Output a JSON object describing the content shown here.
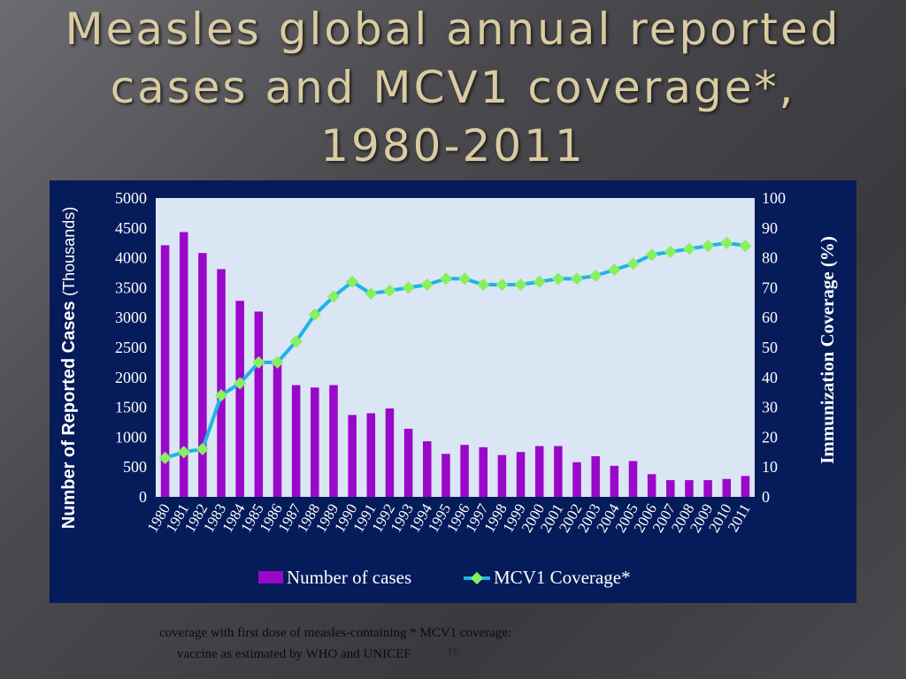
{
  "slide": {
    "title_lines": [
      "Measles global annual reported",
      "cases and MCV1 coverage*,",
      "1980-2011"
    ],
    "footnote_line1": "coverage with first dose of  measles-containing   * MCV1 coverage:",
    "footnote_line2": "vaccine as estimated by WHO and UNICEF",
    "page_number": "16"
  },
  "colors": {
    "panel_bg": "#051b5a",
    "plot_bg": "#dae6f3",
    "bars": "#9a08c9",
    "line": "#1fb3e8",
    "markers": "#88f060",
    "text": "#ffffff"
  },
  "chart_data": {
    "type": "bar",
    "categories": [
      "1980",
      "1981",
      "1982",
      "1983",
      "1984",
      "1985",
      "1986",
      "1987",
      "1988",
      "1989",
      "1990",
      "1991",
      "1992",
      "1993",
      "1994",
      "1995",
      "1996",
      "1997",
      "1998",
      "1999",
      "2000",
      "2001",
      "2002",
      "2003",
      "2004",
      "2005",
      "2006",
      "2007",
      "2008",
      "2009",
      "2010",
      "2011"
    ],
    "series": [
      {
        "name": "Number of  cases",
        "chart_type": "bar",
        "axis": "left",
        "values": [
          4210,
          4430,
          4080,
          3810,
          3280,
          3100,
          2300,
          1870,
          1830,
          1870,
          1370,
          1400,
          1480,
          1140,
          930,
          720,
          870,
          830,
          700,
          750,
          850,
          850,
          580,
          680,
          520,
          600,
          380,
          280,
          280,
          280,
          300,
          350
        ]
      },
      {
        "name": "MCV1 Coverage*",
        "chart_type": "line",
        "axis": "right",
        "values": [
          13,
          15,
          16,
          34,
          38,
          45,
          45,
          52,
          61,
          67,
          72,
          68,
          69,
          70,
          71,
          73,
          73,
          71,
          71,
          71,
          72,
          73,
          73,
          74,
          76,
          78,
          81,
          82,
          83,
          84,
          85,
          84
        ]
      }
    ],
    "ylabel_main": "Number of Reported Cases",
    "ylabel_sub": "(Thousands)",
    "y2label": "Immunization Coverage (%)",
    "ylim": [
      0,
      5000
    ],
    "yticks": [
      "0",
      "500",
      "1000",
      "1500",
      "2000",
      "2500",
      "3000",
      "3500",
      "4000",
      "4500",
      "5000"
    ],
    "y2lim": [
      0,
      100
    ],
    "y2ticks": [
      "0",
      "10",
      "20",
      "30",
      "40",
      "50",
      "60",
      "70",
      "80",
      "90",
      "100"
    ],
    "grid": false,
    "legend_position": "bottom"
  }
}
